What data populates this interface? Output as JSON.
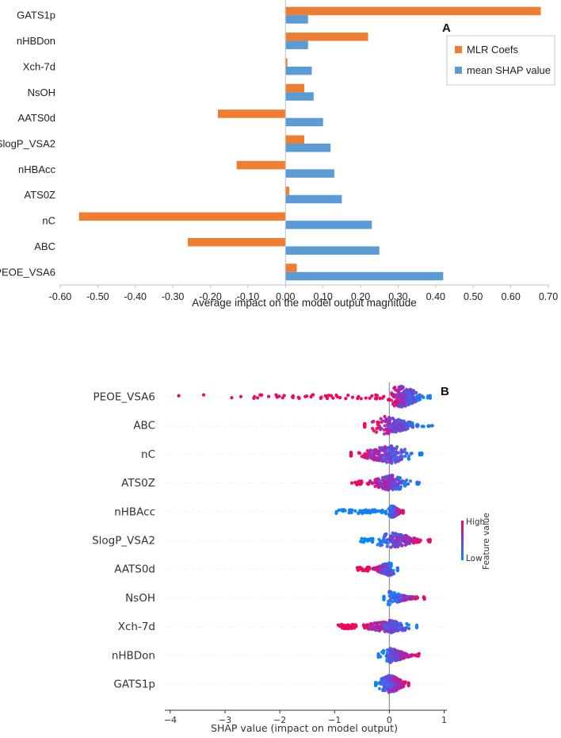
{
  "chart_data": [
    {
      "type": "bar",
      "orientation": "horizontal",
      "panel_label": "A",
      "categories": [
        "PEOE_VSA6",
        "ABC",
        "nC",
        "ATS0Z",
        "nHBAcc",
        "SlogP_VSA2",
        "AATS0d",
        "NsOH",
        "Xch-7d",
        "nHBDon",
        "GATS1p"
      ],
      "series": [
        {
          "name": "MLR Coefs",
          "color": "#ED7D31",
          "values": [
            0.03,
            -0.26,
            -0.55,
            0.01,
            -0.13,
            0.05,
            -0.18,
            0.05,
            0.005,
            0.22,
            0.68
          ]
        },
        {
          "name": "mean SHAP value",
          "color": "#5B9BD5",
          "values": [
            0.42,
            0.25,
            0.23,
            0.15,
            0.13,
            0.12,
            0.1,
            0.075,
            0.07,
            0.06,
            0.06
          ]
        }
      ],
      "xlabel": "Average impact on the model output magnitude",
      "xlim": [
        -0.6,
        0.7
      ],
      "xticks": [
        -0.6,
        -0.5,
        -0.4,
        -0.3,
        -0.2,
        -0.1,
        0.0,
        0.1,
        0.2,
        0.3,
        0.4,
        0.5,
        0.6,
        0.7
      ],
      "xtick_labels": [
        "-0.60",
        "-0.50",
        "-0.40",
        "-0.30",
        "-0.20",
        "-0.10",
        "0.00",
        "0.10",
        "0.20",
        "0.30",
        "0.40",
        "0.50",
        "0.60",
        "0.70"
      ],
      "legend_position": "top-right",
      "grid": false
    },
    {
      "type": "scatter",
      "subtype": "beeswarm",
      "panel_label": "B",
      "features": [
        {
          "name": "PEOE_VSA6",
          "min": -3.9,
          "max": 0.75,
          "high_side": "negative",
          "tail_start": -0.85,
          "spread": [
            -0.1,
            0.7
          ],
          "peak": 0.2,
          "height": 15
        },
        {
          "name": "ABC",
          "min": -0.45,
          "max": 0.8,
          "high_side": "negative",
          "tail_start": -0.45,
          "spread": [
            -0.45,
            0.7
          ],
          "peak": -0.1,
          "height": 12
        },
        {
          "name": "nC",
          "min": -0.7,
          "max": 0.6,
          "high_side": "negative",
          "tail_start": -0.7,
          "spread": [
            -0.7,
            0.55
          ],
          "peak": 0.05,
          "height": 12
        },
        {
          "name": "ATS0Z",
          "min": -0.75,
          "max": 0.55,
          "high_side": "negative",
          "tail_start": -0.75,
          "spread": [
            -0.5,
            0.5
          ],
          "peak": 0.05,
          "height": 10
        },
        {
          "name": "nHBAcc",
          "min": -1.2,
          "max": 0.25,
          "high_side": "positive",
          "tail_start": -1.2,
          "spread": [
            -0.05,
            0.25
          ],
          "peak": 0.05,
          "height": 8
        },
        {
          "name": "SlogP_VSA2",
          "min": -0.6,
          "max": 0.75,
          "high_side": "positive",
          "tail_start": -0.6,
          "spread": [
            -0.3,
            0.7
          ],
          "peak": 0.05,
          "height": 10
        },
        {
          "name": "AATS0d",
          "min": -0.6,
          "max": 0.15,
          "high_side": "negative",
          "tail_start": -0.6,
          "spread": [
            -0.35,
            0.15
          ],
          "peak": 0.0,
          "height": 9
        },
        {
          "name": "NsOH",
          "min": -0.1,
          "max": 0.65,
          "high_side": "positive",
          "tail_start": -0.1,
          "spread": [
            -0.1,
            0.6
          ],
          "peak": -0.02,
          "height": 9
        },
        {
          "name": "Xch-7d",
          "min": -1.0,
          "max": 0.5,
          "high_side": "negative",
          "tail_start": -1.0,
          "spread": [
            -0.6,
            0.5
          ],
          "peak": 0.02,
          "height": 8
        },
        {
          "name": "nHBDon",
          "min": -0.2,
          "max": 0.55,
          "high_side": "positive",
          "tail_start": -0.2,
          "spread": [
            -0.2,
            0.5
          ],
          "peak": 0.02,
          "height": 9
        },
        {
          "name": "GATS1p",
          "min": -0.25,
          "max": 0.35,
          "high_side": "positive",
          "tail_start": -0.25,
          "spread": [
            -0.25,
            0.35
          ],
          "peak": 0.0,
          "height": 12
        }
      ],
      "xlabel": "SHAP value (impact on model output)",
      "xlim": [
        -4.1,
        1.05
      ],
      "xticks": [
        -4,
        -3,
        -2,
        -1,
        0,
        1
      ],
      "xtick_labels": [
        "−4",
        "−3",
        "−2",
        "−1",
        "0",
        "1"
      ],
      "colorbar": {
        "label": "Feature value",
        "high": "High",
        "low": "Low",
        "high_color": "#FF0052",
        "low_color": "#008BFB"
      }
    }
  ]
}
